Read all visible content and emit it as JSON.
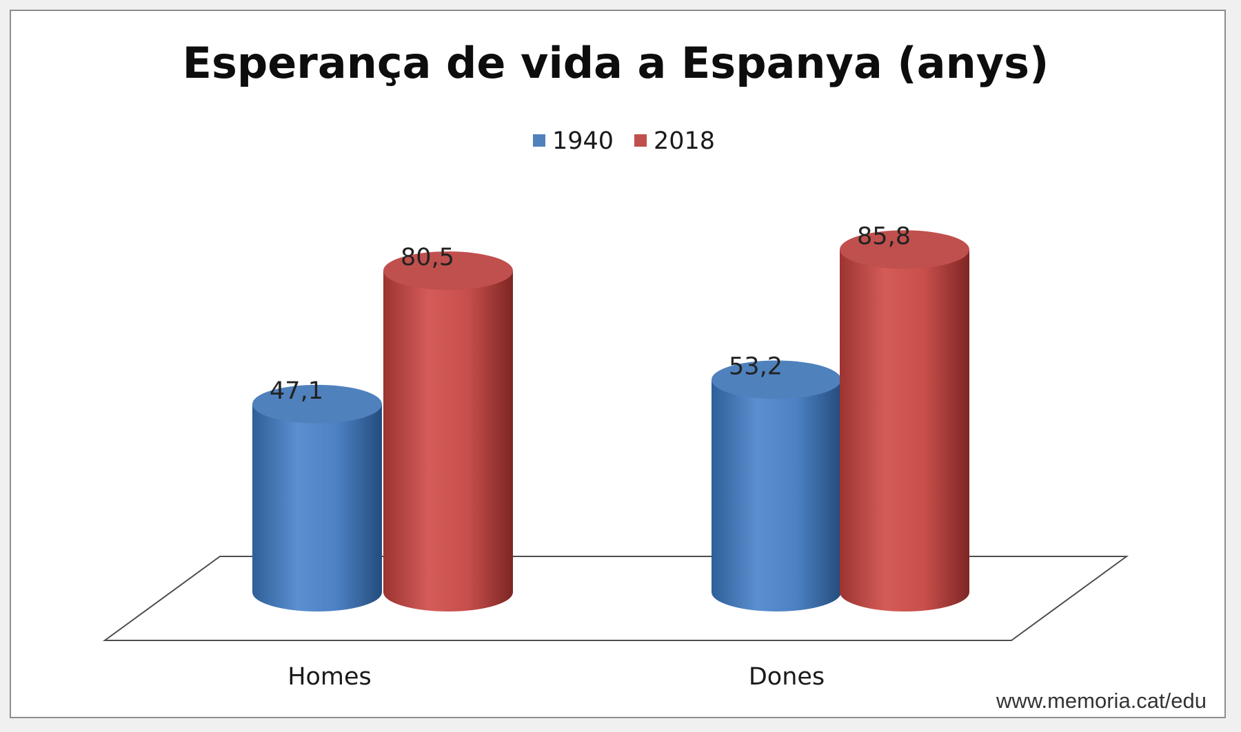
{
  "chart_data": {
    "type": "bar",
    "title": "Esperança de vida a Espanya (anys)",
    "categories": [
      "Homes",
      "Dones"
    ],
    "series": [
      {
        "name": "1940",
        "values": [
          47.1,
          53.2
        ],
        "labels": [
          "47,1",
          "53,2"
        ],
        "color": "#4f81bd"
      },
      {
        "name": "2018",
        "values": [
          80.5,
          85.8
        ],
        "labels": [
          "80,5",
          "85,8"
        ],
        "color": "#c0504d"
      }
    ],
    "legend_position": "top-center",
    "style": "3d-cylinder",
    "grid": false,
    "ylim": [
      0,
      100
    ]
  },
  "source": "www.memoria.cat/edu"
}
